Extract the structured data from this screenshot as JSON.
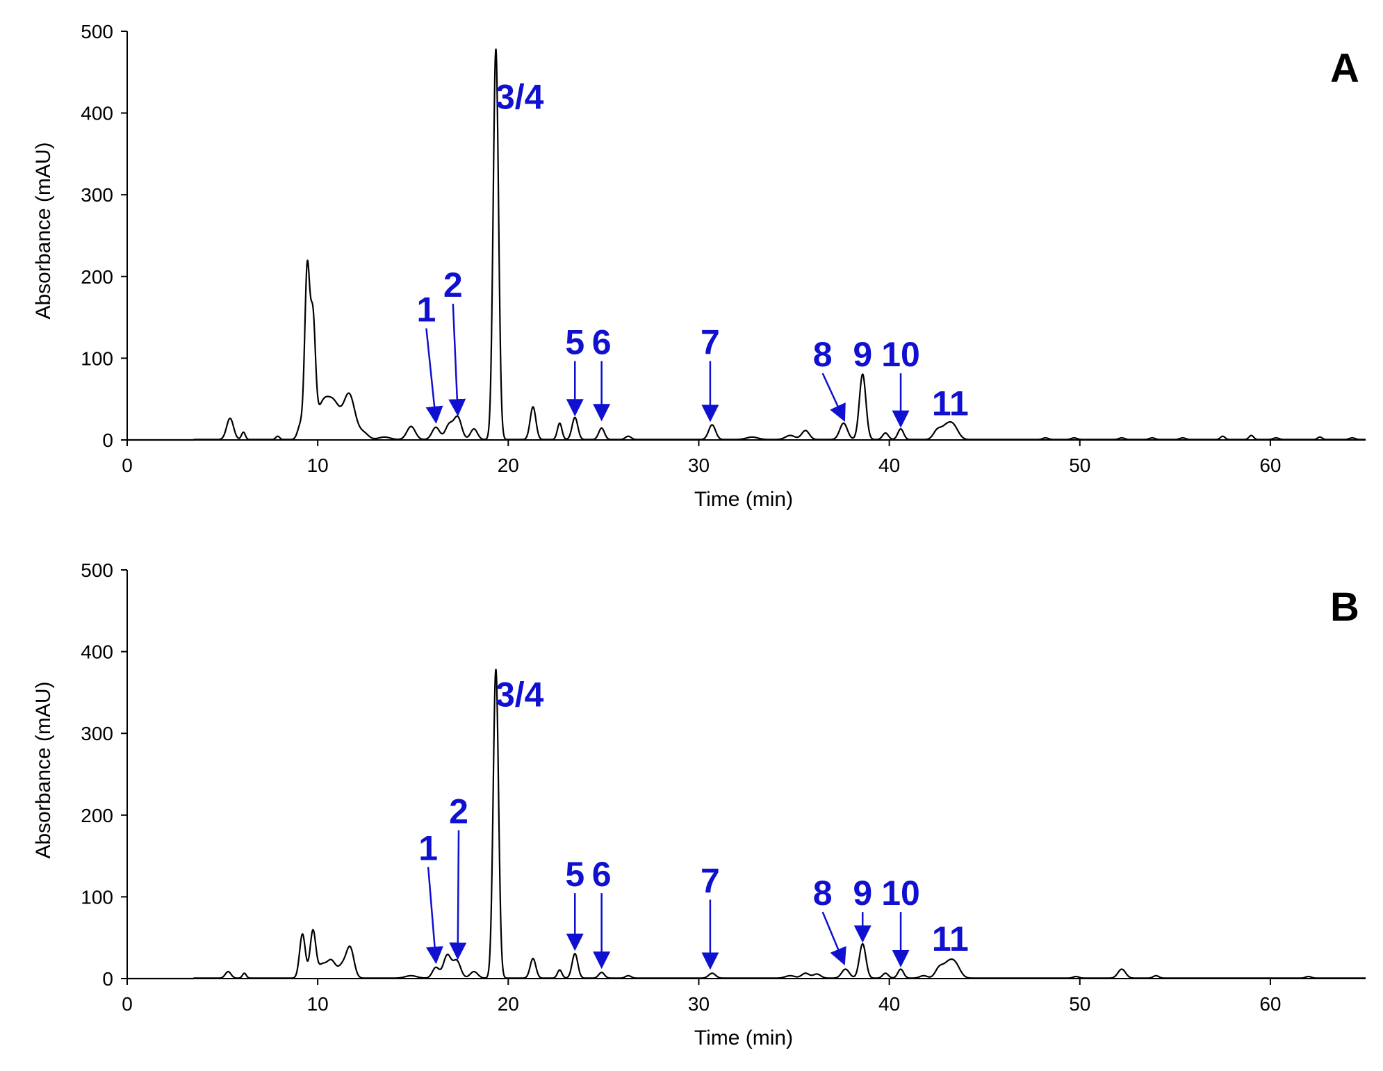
{
  "figure": {
    "panels": [
      {
        "letter": "A",
        "ylabel": "Absorbance (mAU)",
        "xlabel": "Time (min)"
      },
      {
        "letter": "B",
        "ylabel": "Absorbance (mAU)",
        "xlabel": "Time (min)"
      }
    ]
  },
  "colors": {
    "trace": "#000000",
    "annotation": "#1010d0",
    "axis": "#000000"
  },
  "chart_data": [
    {
      "type": "line",
      "title": "A",
      "xlabel": "Time (min)",
      "ylabel": "Absorbance (mAU)",
      "xlim": [
        0,
        65
      ],
      "ylim": [
        0,
        500
      ],
      "xticks": [
        0,
        10,
        20,
        30,
        40,
        50,
        60
      ],
      "yticks": [
        0,
        100,
        200,
        300,
        400,
        500
      ],
      "grid": false,
      "baseline": 0.5,
      "peaks": [
        [
          5.4,
          26,
          0.18
        ],
        [
          6.1,
          9,
          0.1
        ],
        [
          7.9,
          4,
          0.1
        ],
        [
          9.1,
          18,
          0.15
        ],
        [
          9.45,
          205,
          0.13
        ],
        [
          9.75,
          135,
          0.13
        ],
        [
          10.3,
          45,
          0.35
        ],
        [
          10.9,
          35,
          0.3
        ],
        [
          11.65,
          55,
          0.3
        ],
        [
          12.4,
          8,
          0.25
        ],
        [
          13.5,
          3,
          0.3
        ],
        [
          14.9,
          16,
          0.22
        ],
        [
          16.2,
          15,
          0.2
        ],
        [
          16.9,
          18,
          0.2
        ],
        [
          17.35,
          27,
          0.2
        ],
        [
          18.2,
          13,
          0.18
        ],
        [
          19.35,
          478,
          0.14
        ],
        [
          21.3,
          40,
          0.15
        ],
        [
          22.7,
          20,
          0.12
        ],
        [
          23.5,
          27,
          0.15
        ],
        [
          24.9,
          14,
          0.15
        ],
        [
          26.3,
          4,
          0.15
        ],
        [
          30.7,
          18,
          0.18
        ],
        [
          32.8,
          3,
          0.3
        ],
        [
          34.8,
          5,
          0.25
        ],
        [
          35.6,
          11,
          0.2
        ],
        [
          37.6,
          20,
          0.2
        ],
        [
          38.6,
          80,
          0.17
        ],
        [
          39.8,
          8,
          0.15
        ],
        [
          40.6,
          13,
          0.15
        ],
        [
          42.5,
          9,
          0.2
        ],
        [
          43.0,
          16,
          0.3
        ],
        [
          43.4,
          12,
          0.25
        ],
        [
          48.2,
          2,
          0.15
        ],
        [
          49.7,
          2,
          0.15
        ],
        [
          52.2,
          2,
          0.15
        ],
        [
          53.8,
          2,
          0.15
        ],
        [
          55.4,
          2,
          0.15
        ],
        [
          57.5,
          4,
          0.12
        ],
        [
          59.0,
          5,
          0.12
        ],
        [
          60.3,
          2,
          0.15
        ],
        [
          62.6,
          3,
          0.12
        ],
        [
          64.3,
          2,
          0.15
        ]
      ],
      "annotations": [
        {
          "text": "1",
          "label_x": 15.7,
          "label_y": 145,
          "target_x": 16.2,
          "target_y": 24,
          "arrow": true
        },
        {
          "text": "2",
          "label_x": 17.1,
          "label_y": 175,
          "target_x": 17.35,
          "target_y": 33,
          "arrow": true
        },
        {
          "text": "3/4",
          "label_x": 20.6,
          "label_y": 405,
          "arrow": false
        },
        {
          "text": "5",
          "label_x": 23.5,
          "label_y": 105,
          "target_x": 23.5,
          "target_y": 33,
          "arrow": true
        },
        {
          "text": "6",
          "label_x": 24.9,
          "label_y": 105,
          "target_x": 24.9,
          "target_y": 27,
          "arrow": true
        },
        {
          "text": "7",
          "label_x": 30.6,
          "label_y": 105,
          "target_x": 30.6,
          "target_y": 26,
          "arrow": true
        },
        {
          "text": "8",
          "label_x": 36.5,
          "label_y": 90,
          "target_x": 37.6,
          "target_y": 26,
          "arrow": true
        },
        {
          "text": "9",
          "label_x": 38.6,
          "label_y": 90,
          "arrow": false
        },
        {
          "text": "10",
          "label_x": 40.6,
          "label_y": 90,
          "target_x": 40.6,
          "target_y": 19,
          "arrow": true
        },
        {
          "text": "11",
          "label_x": 43.2,
          "label_y": 30,
          "arrow": false
        }
      ]
    },
    {
      "type": "line",
      "title": "B",
      "xlabel": "Time (min)",
      "ylabel": "Absorbance (mAU)",
      "xlim": [
        0,
        65
      ],
      "ylim": [
        0,
        500
      ],
      "xticks": [
        0,
        10,
        20,
        30,
        40,
        50,
        60
      ],
      "yticks": [
        0,
        100,
        200,
        300,
        400,
        500
      ],
      "grid": false,
      "baseline": 0.5,
      "peaks": [
        [
          5.3,
          8,
          0.15
        ],
        [
          6.15,
          6,
          0.1
        ],
        [
          9.2,
          54,
          0.15
        ],
        [
          9.75,
          58,
          0.15
        ],
        [
          10.2,
          14,
          0.2
        ],
        [
          10.7,
          22,
          0.25
        ],
        [
          11.3,
          14,
          0.2
        ],
        [
          11.7,
          37,
          0.2
        ],
        [
          14.9,
          3,
          0.3
        ],
        [
          16.2,
          13,
          0.18
        ],
        [
          16.8,
          28,
          0.2
        ],
        [
          17.3,
          21,
          0.2
        ],
        [
          18.2,
          8,
          0.2
        ],
        [
          19.35,
          378,
          0.14
        ],
        [
          21.3,
          24,
          0.15
        ],
        [
          22.7,
          10,
          0.12
        ],
        [
          23.5,
          30,
          0.15
        ],
        [
          24.9,
          7,
          0.15
        ],
        [
          26.3,
          3,
          0.15
        ],
        [
          30.7,
          6,
          0.18
        ],
        [
          34.8,
          3,
          0.25
        ],
        [
          35.6,
          6,
          0.2
        ],
        [
          36.2,
          5,
          0.2
        ],
        [
          37.7,
          11,
          0.2
        ],
        [
          38.6,
          42,
          0.17
        ],
        [
          39.8,
          6,
          0.15
        ],
        [
          40.6,
          11,
          0.15
        ],
        [
          41.8,
          3,
          0.2
        ],
        [
          42.6,
          10,
          0.2
        ],
        [
          43.1,
          18,
          0.3
        ],
        [
          43.5,
          12,
          0.25
        ],
        [
          49.8,
          2,
          0.15
        ],
        [
          52.2,
          11,
          0.2
        ],
        [
          54.0,
          3,
          0.15
        ],
        [
          62.0,
          2,
          0.15
        ]
      ],
      "annotations": [
        {
          "text": "1",
          "label_x": 15.8,
          "label_y": 145,
          "target_x": 16.2,
          "target_y": 22,
          "arrow": true
        },
        {
          "text": "2",
          "label_x": 17.4,
          "label_y": 190,
          "target_x": 17.35,
          "target_y": 27,
          "arrow": true
        },
        {
          "text": "3/4",
          "label_x": 20.6,
          "label_y": 333,
          "arrow": false
        },
        {
          "text": "5",
          "label_x": 23.5,
          "label_y": 113,
          "target_x": 23.5,
          "target_y": 38,
          "arrow": true
        },
        {
          "text": "6",
          "label_x": 24.9,
          "label_y": 113,
          "target_x": 24.9,
          "target_y": 16,
          "arrow": true
        },
        {
          "text": "7",
          "label_x": 30.6,
          "label_y": 105,
          "target_x": 30.6,
          "target_y": 15,
          "arrow": true
        },
        {
          "text": "8",
          "label_x": 36.5,
          "label_y": 90,
          "target_x": 37.6,
          "target_y": 20,
          "arrow": true
        },
        {
          "text": "9",
          "label_x": 38.6,
          "label_y": 90,
          "target_x": 38.6,
          "target_y": 48,
          "arrow": true
        },
        {
          "text": "10",
          "label_x": 40.6,
          "label_y": 90,
          "target_x": 40.6,
          "target_y": 18,
          "arrow": true
        },
        {
          "text": "11",
          "label_x": 43.2,
          "label_y": 34,
          "arrow": false
        }
      ]
    }
  ]
}
